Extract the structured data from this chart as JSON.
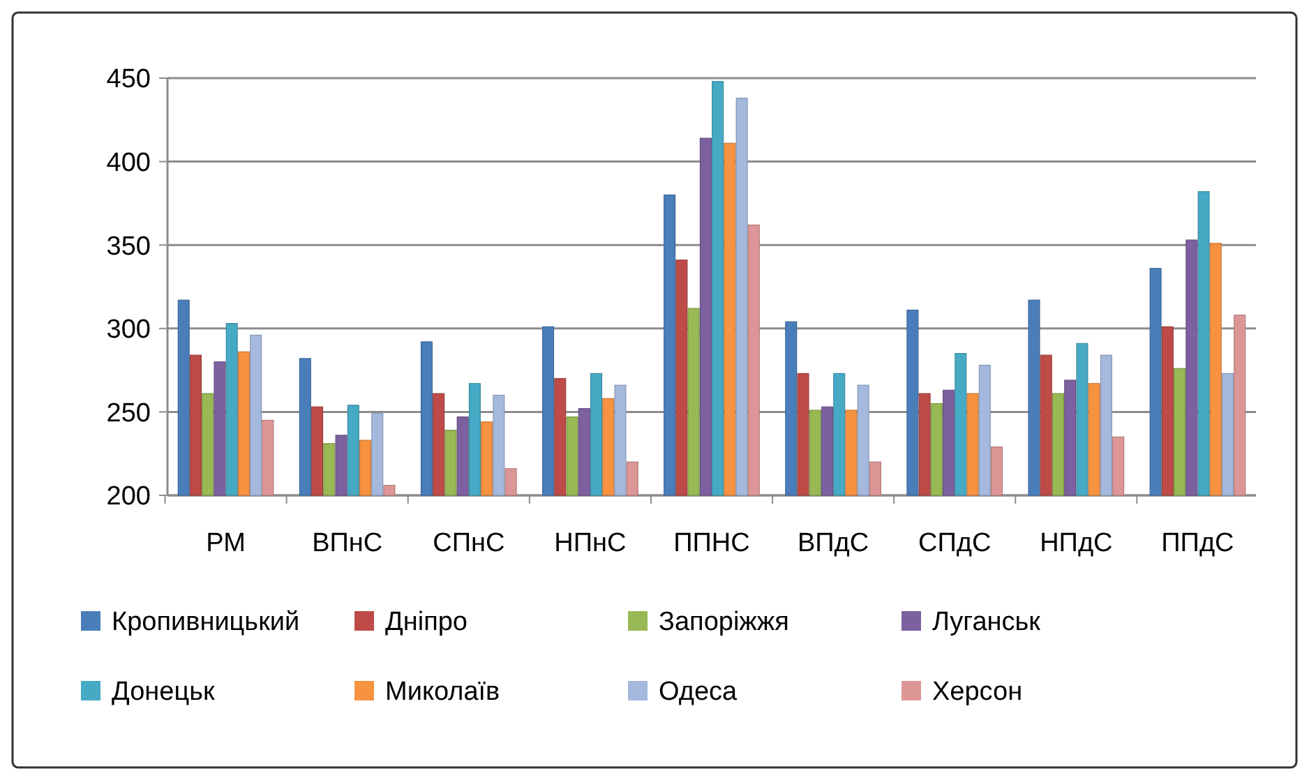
{
  "chart_data": {
    "type": "bar",
    "categories": [
      "РМ",
      "ВПнС",
      "СПнС",
      "НПнС",
      "ППНС",
      "ВПдС",
      "СПдС",
      "НПдС",
      "ППдС"
    ],
    "series": [
      {
        "name": "Кропивницький",
        "color": "#4a7ebb",
        "values": [
          317,
          282,
          292,
          301,
          380,
          304,
          311,
          317,
          336
        ]
      },
      {
        "name": "Дніпро",
        "color": "#be4b48",
        "values": [
          284,
          253,
          261,
          270,
          341,
          273,
          261,
          284,
          301
        ]
      },
      {
        "name": "Запоріжжя",
        "color": "#98b954",
        "values": [
          261,
          231,
          239,
          247,
          312,
          251,
          255,
          261,
          276
        ]
      },
      {
        "name": "Луганськ",
        "color": "#7d60a0",
        "values": [
          280,
          236,
          247,
          252,
          414,
          253,
          263,
          269,
          353
        ]
      },
      {
        "name": "Донецьк",
        "color": "#46aac5",
        "values": [
          303,
          254,
          267,
          273,
          448,
          273,
          285,
          291,
          382
        ]
      },
      {
        "name": "Миколаїв",
        "color": "#f69240",
        "values": [
          286,
          233,
          244,
          258,
          411,
          251,
          261,
          267,
          351
        ]
      },
      {
        "name": "Одеса",
        "color": "#a5b9de",
        "values": [
          296,
          249,
          260,
          266,
          438,
          266,
          278,
          284,
          273
        ]
      },
      {
        "name": "Херсон",
        "color": "#dc9695",
        "values": [
          245,
          206,
          216,
          220,
          362,
          220,
          229,
          235,
          308
        ]
      }
    ],
    "ylim": [
      200,
      450
    ],
    "yticks": [
      200,
      250,
      300,
      350,
      400,
      450
    ],
    "grid": "y",
    "legend": "bottom"
  }
}
